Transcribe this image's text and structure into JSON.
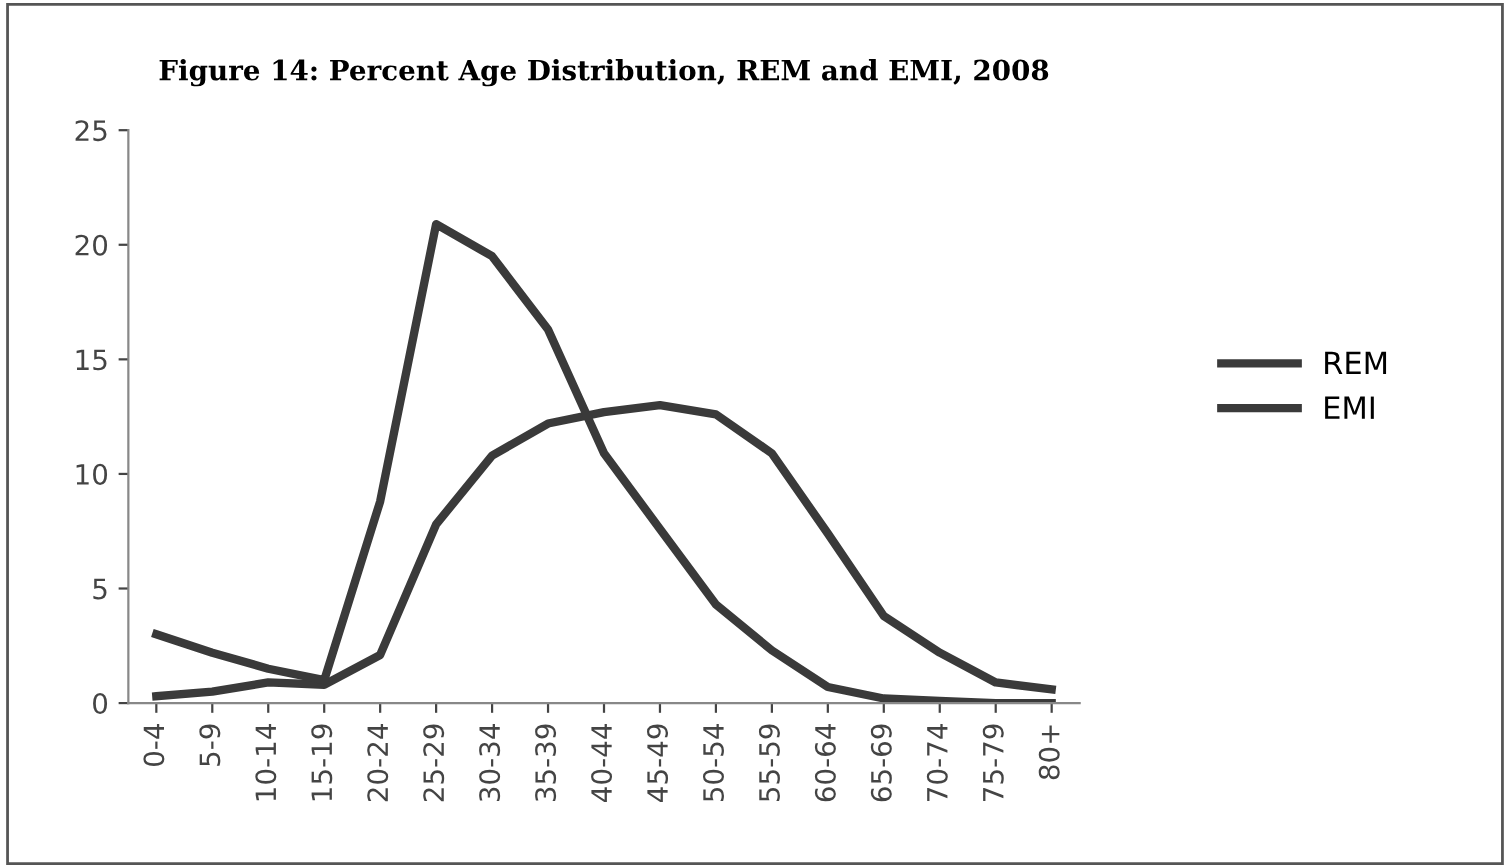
{
  "chart_data": {
    "type": "line",
    "title": "Figure 14: Percent Age Distribution, REM and EMI, 2008",
    "categories": [
      "0-4",
      "5-9",
      "10-14",
      "15-19",
      "20-24",
      "25-29",
      "30-34",
      "35-39",
      "40-44",
      "45-49",
      "50-54",
      "55-59",
      "60-64",
      "65-69",
      "70-74",
      "75-79",
      "80+"
    ],
    "series": [
      {
        "name": "REM",
        "color": "#3a3a3a",
        "values": [
          0.3,
          0.5,
          0.9,
          0.8,
          2.1,
          7.8,
          10.8,
          12.2,
          12.7,
          13.0,
          12.6,
          10.9,
          7.4,
          3.8,
          2.2,
          0.9,
          0.6
        ]
      },
      {
        "name": "EMI",
        "color": "#3a3a3a",
        "values": [
          3.0,
          2.2,
          1.5,
          1.0,
          8.8,
          20.9,
          19.5,
          16.3,
          10.9,
          7.6,
          4.3,
          2.3,
          0.7,
          0.2,
          0.1,
          0,
          0
        ]
      }
    ],
    "ylim": [
      0,
      25
    ],
    "yticks": [
      0,
      5,
      10,
      15,
      20,
      25
    ],
    "grid": false,
    "legend": "right",
    "marker": "none",
    "line_style": "solid"
  }
}
